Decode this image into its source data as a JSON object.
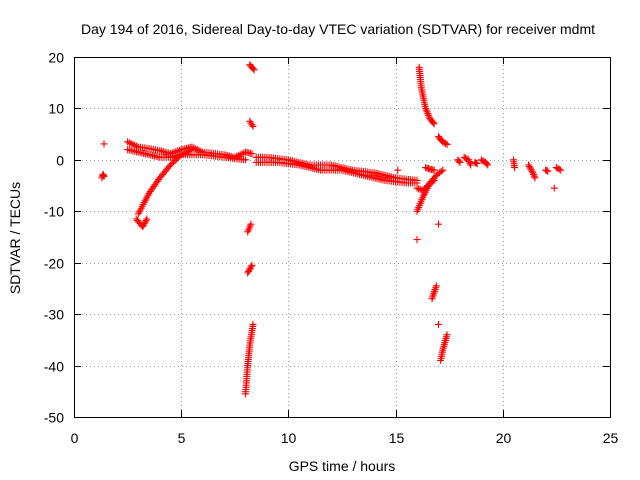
{
  "chart_data": {
    "type": "scatter",
    "title": "Day 194 of 2016, Sidereal Day-to-day VTEC variation (SDTVAR) for receiver mdmt",
    "xlabel": "GPS time / hours",
    "ylabel": "SDTVAR / TECUs",
    "xlim": [
      0,
      25
    ],
    "ylim": [
      -50,
      20
    ],
    "xticks": [
      0,
      5,
      10,
      15,
      20,
      25
    ],
    "yticks": [
      20,
      10,
      0,
      -10,
      -20,
      -30,
      -40,
      -50
    ],
    "grid": true,
    "marker": "plus",
    "color": "#ff0000",
    "series": [
      {
        "name": "SDTVAR",
        "segments": [
          [
            [
              1.3,
              -3.5
            ],
            [
              1.35,
              -2.8
            ],
            [
              1.4,
              -3.2
            ]
          ],
          [
            [
              1.4,
              3.1
            ]
          ],
          [
            [
              2.5,
              3.5
            ],
            [
              3.0,
              2.5
            ],
            [
              3.5,
              2.2
            ],
            [
              4.0,
              1.8
            ],
            [
              4.5,
              1.2
            ],
            [
              5.0,
              2.0
            ],
            [
              5.5,
              2.5
            ],
            [
              6.0,
              1.5
            ],
            [
              7.0,
              1.0
            ],
            [
              7.5,
              0.5
            ],
            [
              8.0,
              1.5
            ],
            [
              8.3,
              1.2
            ]
          ],
          [
            [
              2.5,
              2.0
            ],
            [
              3.0,
              1.5
            ],
            [
              3.5,
              1.0
            ],
            [
              4.0,
              0.5
            ],
            [
              4.5,
              0.5
            ],
            [
              5.0,
              1.0
            ],
            [
              6.0,
              1.0
            ],
            [
              7.0,
              0.5
            ],
            [
              8.0,
              0.0
            ]
          ],
          [
            [
              3.0,
              -10.5
            ],
            [
              3.5,
              -6.5
            ],
            [
              4.0,
              -3.5
            ],
            [
              4.5,
              -1.0
            ],
            [
              5.0,
              1.0
            ],
            [
              5.5,
              2.0
            ]
          ],
          [
            [
              2.9,
              -11.5
            ],
            [
              3.2,
              -13.0
            ],
            [
              3.4,
              -11.5
            ]
          ],
          [
            [
              8.2,
              18.5
            ],
            [
              8.4,
              17.5
            ]
          ],
          [
            [
              8.2,
              7.5
            ],
            [
              8.35,
              6.5
            ]
          ],
          [
            [
              8.1,
              -14.0
            ],
            [
              8.25,
              -12.5
            ]
          ],
          [
            [
              8.1,
              -22.0
            ],
            [
              8.3,
              -20.5
            ]
          ],
          [
            [
              8.0,
              -45.5
            ],
            [
              8.1,
              -40.0
            ],
            [
              8.2,
              -36.0
            ],
            [
              8.35,
              -32.0
            ]
          ],
          [
            [
              8.5,
              0.5
            ],
            [
              9.0,
              0.5
            ],
            [
              10.0,
              0.0
            ],
            [
              11.0,
              -1.0
            ],
            [
              12.0,
              -1.0
            ],
            [
              13.0,
              -2.0
            ],
            [
              14.0,
              -2.5
            ],
            [
              15.0,
              -3.5
            ],
            [
              16.0,
              -4.0
            ]
          ],
          [
            [
              8.5,
              -0.5
            ],
            [
              9.5,
              -0.5
            ],
            [
              10.5,
              -1.0
            ],
            [
              11.5,
              -2.0
            ],
            [
              12.5,
              -2.0
            ],
            [
              13.5,
              -3.0
            ],
            [
              14.5,
              -4.0
            ],
            [
              15.5,
              -4.5
            ],
            [
              16.0,
              -4.5
            ]
          ],
          [
            [
              15.1,
              -2.0
            ]
          ],
          [
            [
              16.1,
              18.0
            ],
            [
              16.2,
              14.0
            ],
            [
              16.4,
              10.0
            ],
            [
              16.6,
              8.0
            ],
            [
              16.8,
              7.0
            ]
          ],
          [
            [
              17.0,
              4.5
            ],
            [
              17.2,
              3.5
            ],
            [
              17.4,
              3.0
            ]
          ],
          [
            [
              16.4,
              -1.5
            ],
            [
              16.6,
              -1.8
            ],
            [
              16.8,
              -2.0
            ]
          ],
          [
            [
              16.0,
              -5.5
            ],
            [
              16.3,
              -6.0
            ],
            [
              16.5,
              -5.0
            ],
            [
              16.8,
              -4.0
            ]
          ],
          [
            [
              16.0,
              -10.0
            ],
            [
              16.3,
              -7.0
            ],
            [
              16.6,
              -4.5
            ],
            [
              16.9,
              -3.0
            ],
            [
              17.2,
              -2.0
            ]
          ],
          [
            [
              16.0,
              -15.5
            ]
          ],
          [
            [
              17.0,
              -12.5
            ]
          ],
          [
            [
              16.7,
              -27.0
            ],
            [
              16.9,
              -24.5
            ]
          ],
          [
            [
              17.0,
              -32.0
            ]
          ],
          [
            [
              17.1,
              -39.0
            ],
            [
              17.2,
              -37.0
            ],
            [
              17.4,
              -34.0
            ]
          ],
          [
            [
              17.9,
              0.0
            ],
            [
              18.0,
              -0.5
            ]
          ],
          [
            [
              18.2,
              0.5
            ],
            [
              18.4,
              0.0
            ],
            [
              18.5,
              -1.0
            ]
          ],
          [
            [
              18.7,
              -0.5
            ],
            [
              18.8,
              -0.7
            ]
          ],
          [
            [
              19.0,
              0.0
            ],
            [
              19.2,
              -0.5
            ],
            [
              19.3,
              -1.0
            ]
          ],
          [
            [
              20.5,
              0.0
            ],
            [
              20.55,
              -1.5
            ]
          ],
          [
            [
              21.2,
              -1.0
            ],
            [
              21.4,
              -2.5
            ],
            [
              21.5,
              -3.5
            ]
          ],
          [
            [
              22.0,
              -2.0
            ],
            [
              22.1,
              -2.2
            ]
          ],
          [
            [
              22.5,
              -1.5
            ],
            [
              22.7,
              -2.0
            ]
          ],
          [
            [
              22.4,
              -5.5
            ]
          ]
        ]
      }
    ]
  }
}
